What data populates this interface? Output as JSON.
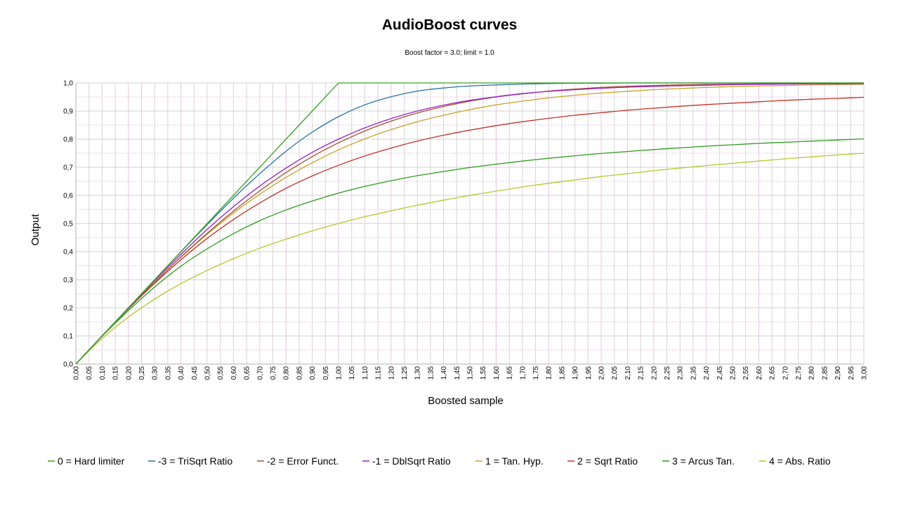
{
  "chart_data": {
    "type": "line",
    "title": "AudioBoost curves",
    "subtitle": "Boost factor = 3.0; limit = 1.0",
    "xlabel": "Boosted sample",
    "ylabel": "Output",
    "xlim": [
      0,
      3
    ],
    "ylim": [
      0,
      1
    ],
    "x_ticks": [
      "0,00",
      "0,05",
      "0,10",
      "0,15",
      "0,20",
      "0,25",
      "0,30",
      "0,35",
      "0,40",
      "0,45",
      "0,50",
      "0,55",
      "0,60",
      "0,65",
      "0,70",
      "0,75",
      "0,80",
      "0,85",
      "0,90",
      "0,95",
      "1,00",
      "1,05",
      "1,10",
      "1,15",
      "1,20",
      "1,25",
      "1,30",
      "1,35",
      "1,40",
      "1,45",
      "1,50",
      "1,55",
      "1,60",
      "1,65",
      "1,70",
      "1,75",
      "1,80",
      "1,85",
      "1,90",
      "1,95",
      "2,00",
      "2,05",
      "2,10",
      "2,15",
      "2,20",
      "2,25",
      "2,30",
      "2,35",
      "2,40",
      "2,45",
      "2,50",
      "2,55",
      "2,60",
      "2,65",
      "2,70",
      "2,75",
      "2,80",
      "2,85",
      "2,90",
      "2,95",
      "3,00"
    ],
    "y_ticks": [
      "0,0",
      "0,1",
      "0,2",
      "0,3",
      "0,4",
      "0,5",
      "0,6",
      "0,7",
      "0,8",
      "0,9",
      "1,0"
    ],
    "grid": true,
    "legend_position": "bottom",
    "x": [
      0.0,
      0.1,
      0.2,
      0.3,
      0.4,
      0.5,
      0.6,
      0.7,
      0.8,
      0.9,
      1.0,
      1.1,
      1.2,
      1.3,
      1.4,
      1.5,
      1.6,
      1.7,
      1.8,
      1.9,
      2.0,
      2.1,
      2.2,
      2.3,
      2.4,
      2.5,
      2.6,
      2.7,
      2.8,
      2.9,
      3.0
    ],
    "series": [
      {
        "name": "0 = Hard limiter",
        "color": "#3aa320",
        "values": [
          0.0,
          0.1,
          0.2,
          0.3,
          0.4,
          0.5,
          0.6,
          0.7,
          0.8,
          0.9,
          1.0,
          1.0,
          1.0,
          1.0,
          1.0,
          1.0,
          1.0,
          1.0,
          1.0,
          1.0,
          1.0,
          1.0,
          1.0,
          1.0,
          1.0,
          1.0,
          1.0,
          1.0,
          1.0,
          1.0,
          1.0
        ]
      },
      {
        "name": "-3 = TriSqrt Ratio",
        "color": "#2573a5",
        "values": [
          0.0,
          0.1,
          0.2,
          0.3,
          0.399,
          0.496,
          0.59,
          0.677,
          0.757,
          0.825,
          0.88,
          0.922,
          0.951,
          0.971,
          0.982,
          0.989,
          0.993,
          0.996,
          0.998,
          0.999,
          0.999,
          1.0,
          1.0,
          1.0,
          1.0,
          1.0,
          1.0,
          1.0,
          1.0,
          1.0,
          1.0
        ]
      },
      {
        "name": "-2 = Error Funct.",
        "color": "#a0522d",
        "values": [
          0.0,
          0.1,
          0.197,
          0.291,
          0.381,
          0.465,
          0.544,
          0.616,
          0.681,
          0.738,
          0.787,
          0.829,
          0.864,
          0.893,
          0.916,
          0.935,
          0.95,
          0.961,
          0.971,
          0.978,
          0.984,
          0.988,
          0.991,
          0.993,
          0.995,
          0.996,
          0.997,
          0.998,
          0.999,
          0.999,
          0.999
        ]
      },
      {
        "name": "-1 = DblSqrt Ratio",
        "color": "#9b1fc1",
        "values": [
          0.0,
          0.1,
          0.199,
          0.297,
          0.39,
          0.479,
          0.56,
          0.633,
          0.697,
          0.753,
          0.8,
          0.84,
          0.873,
          0.9,
          0.921,
          0.938,
          0.951,
          0.962,
          0.97,
          0.976,
          0.981,
          0.985,
          0.988,
          0.99,
          0.992,
          0.994,
          0.995,
          0.996,
          0.997,
          0.997,
          0.998
        ]
      },
      {
        "name": "1 = Tan. Hyp.",
        "color": "#c9a227",
        "values": [
          0.0,
          0.1,
          0.197,
          0.291,
          0.38,
          0.462,
          0.537,
          0.604,
          0.664,
          0.716,
          0.762,
          0.801,
          0.834,
          0.862,
          0.885,
          0.905,
          0.922,
          0.935,
          0.947,
          0.956,
          0.964,
          0.97,
          0.976,
          0.98,
          0.984,
          0.987,
          0.989,
          0.991,
          0.993,
          0.994,
          0.995
        ]
      },
      {
        "name": "2 = Sqrt Ratio",
        "color": "#c1332a",
        "values": [
          0.0,
          0.1,
          0.196,
          0.287,
          0.371,
          0.447,
          0.514,
          0.573,
          0.625,
          0.669,
          0.707,
          0.74,
          0.768,
          0.793,
          0.814,
          0.832,
          0.848,
          0.862,
          0.874,
          0.885,
          0.894,
          0.903,
          0.91,
          0.917,
          0.923,
          0.928,
          0.933,
          0.938,
          0.942,
          0.945,
          0.949
        ]
      },
      {
        "name": "3 = Arcus Tan.",
        "color": "#2e9a1f",
        "values": [
          0.0,
          0.099,
          0.19,
          0.274,
          0.348,
          0.41,
          0.464,
          0.51,
          0.548,
          0.58,
          0.608,
          0.632,
          0.652,
          0.67,
          0.685,
          0.699,
          0.711,
          0.722,
          0.732,
          0.741,
          0.749,
          0.756,
          0.763,
          0.769,
          0.775,
          0.78,
          0.785,
          0.789,
          0.793,
          0.797,
          0.801
        ]
      },
      {
        "name": "4 = Abs. Ratio",
        "color": "#b4c82a",
        "values": [
          0.0,
          0.091,
          0.167,
          0.231,
          0.286,
          0.333,
          0.375,
          0.412,
          0.444,
          0.474,
          0.5,
          0.524,
          0.545,
          0.565,
          0.583,
          0.6,
          0.615,
          0.63,
          0.643,
          0.655,
          0.667,
          0.677,
          0.688,
          0.697,
          0.706,
          0.714,
          0.722,
          0.73,
          0.737,
          0.744,
          0.75
        ]
      }
    ]
  }
}
